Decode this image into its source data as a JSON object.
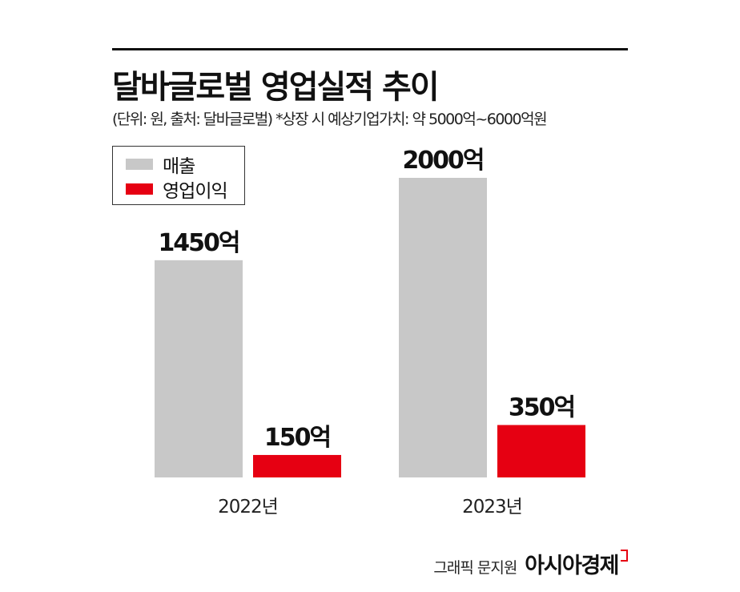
{
  "header": {
    "title": "달바글로벌 영업실적 추이",
    "subtitle": "(단위: 원, 출처: 달바글로벌)  *상장 시 예상기업가치: 약 5000억~6000억원"
  },
  "footer": {
    "credit": "그래픽 문지원",
    "brand": "아시아경제"
  },
  "colors": {
    "revenue": "#c8c8c8",
    "operating_profit": "#e60012"
  },
  "chart_data": {
    "type": "bar",
    "categories": [
      "2022년",
      "2023년"
    ],
    "series": [
      {
        "name": "매출",
        "values": [
          1450,
          2000
        ],
        "labels": [
          "1450억",
          "2000억"
        ]
      },
      {
        "name": "영업이익",
        "values": [
          150,
          350
        ],
        "labels": [
          "150억",
          "350억"
        ]
      }
    ],
    "unit": "억",
    "ylim": [
      0,
      2000
    ],
    "grid": false,
    "legend": "top-left"
  }
}
